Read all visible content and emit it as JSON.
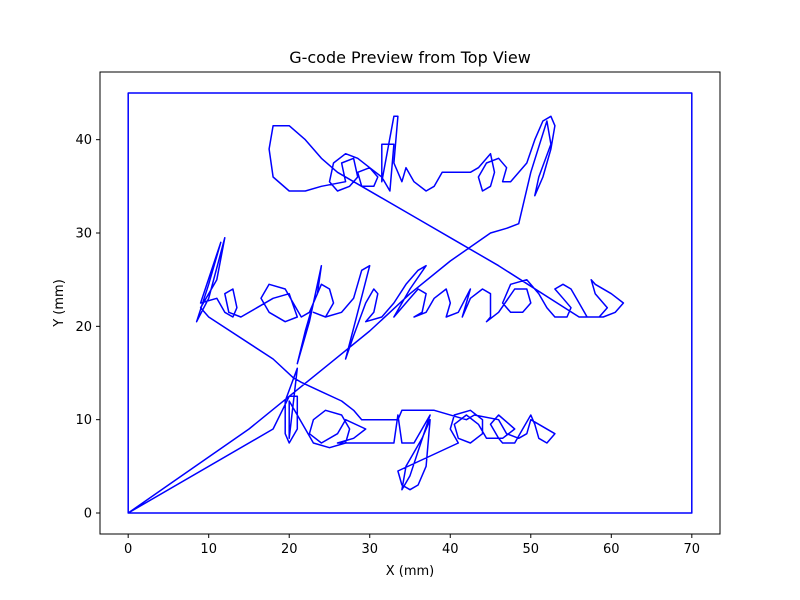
{
  "chart_data": {
    "type": "line",
    "title": "G-code Preview from Top View",
    "xlabel": "X (mm)",
    "ylabel": "Y (mm)",
    "xlim": [
      -3.5,
      73.5
    ],
    "ylim": [
      -2.25,
      47.25
    ],
    "xticks": [
      0,
      10,
      20,
      30,
      40,
      50,
      60,
      70
    ],
    "yticks": [
      0,
      10,
      20,
      30,
      40
    ],
    "grid": false,
    "line_color": "#0000ff",
    "series": [
      {
        "points": [
          [
            0,
            0
          ],
          [
            70,
            0
          ],
          [
            70,
            45
          ],
          [
            0,
            45
          ],
          [
            0,
            0
          ],
          [
            18,
            9
          ],
          [
            20,
            12.5
          ],
          [
            21,
            12.5
          ],
          [
            21,
            9
          ],
          [
            20,
            7.5
          ],
          [
            19.5,
            8.5
          ],
          [
            19.5,
            12
          ],
          [
            21,
            15.5
          ],
          [
            20,
            8
          ],
          [
            20,
            12
          ],
          [
            23,
            7.5
          ],
          [
            25,
            7
          ],
          [
            27,
            7.5
          ],
          [
            27.5,
            9
          ],
          [
            26.5,
            10.5
          ],
          [
            24.5,
            11
          ],
          [
            23,
            10
          ],
          [
            22.5,
            8.5
          ],
          [
            24,
            7.5
          ],
          [
            26,
            8.5
          ],
          [
            27,
            10
          ],
          [
            29.5,
            9
          ],
          [
            28,
            8
          ],
          [
            26,
            7.5
          ],
          [
            33,
            7.5
          ],
          [
            33.5,
            10.5
          ],
          [
            34,
            7.5
          ],
          [
            35.5,
            7.5
          ],
          [
            37.5,
            10.5
          ],
          [
            35,
            4
          ],
          [
            34,
            2.5
          ],
          [
            34.5,
            5
          ],
          [
            36.5,
            8
          ],
          [
            37.5,
            10
          ],
          [
            37,
            5
          ],
          [
            36,
            3
          ],
          [
            35,
            2.5
          ],
          [
            34,
            3
          ],
          [
            33.5,
            4.5
          ],
          [
            41,
            7.5
          ],
          [
            40,
            9
          ],
          [
            40.5,
            10.5
          ],
          [
            42.5,
            11
          ],
          [
            44,
            10
          ],
          [
            44,
            8.5
          ],
          [
            42.5,
            7.5
          ],
          [
            41,
            8
          ],
          [
            40.5,
            9.5
          ],
          [
            42,
            10.5
          ],
          [
            43.5,
            9.5
          ],
          [
            44.5,
            8
          ],
          [
            46.5,
            8
          ],
          [
            48,
            9
          ],
          [
            46,
            10.5
          ],
          [
            45,
            9.5
          ],
          [
            46,
            8
          ],
          [
            46.5,
            7.5
          ],
          [
            48,
            7.5
          ],
          [
            49,
            9
          ],
          [
            50,
            10.5
          ],
          [
            50.5,
            9.5
          ],
          [
            51,
            8
          ],
          [
            52,
            7.5
          ],
          [
            53,
            8.5
          ],
          [
            50,
            10
          ],
          [
            49.5,
            8.5
          ],
          [
            48.5,
            8
          ],
          [
            47,
            8.5
          ],
          [
            46,
            10
          ],
          [
            43,
            10.5
          ],
          [
            42,
            10
          ],
          [
            38,
            11
          ],
          [
            34,
            11
          ],
          [
            33.5,
            10
          ],
          [
            31,
            10
          ],
          [
            29,
            10
          ],
          [
            28,
            11
          ],
          [
            26.5,
            12
          ],
          [
            24,
            13
          ],
          [
            21.5,
            14
          ],
          [
            20.5,
            14.5
          ],
          [
            18,
            16.5
          ],
          [
            10,
            21
          ],
          [
            9,
            22
          ],
          [
            11,
            25
          ],
          [
            12,
            29.5
          ],
          [
            10,
            23
          ],
          [
            8.5,
            20.5
          ],
          [
            10,
            24.5
          ],
          [
            11.5,
            29
          ],
          [
            9,
            22.5
          ],
          [
            11,
            23
          ],
          [
            12,
            21.5
          ],
          [
            13,
            21
          ],
          [
            13.5,
            22
          ],
          [
            13,
            24
          ],
          [
            12,
            23.5
          ],
          [
            12.5,
            21.5
          ],
          [
            14,
            21
          ],
          [
            16,
            22
          ],
          [
            18,
            23
          ],
          [
            20,
            23.5
          ],
          [
            21,
            21
          ],
          [
            19.5,
            20.5
          ],
          [
            17.5,
            21.5
          ],
          [
            16.5,
            23
          ],
          [
            17.5,
            24.5
          ],
          [
            19.5,
            24
          ],
          [
            20.5,
            22.5
          ],
          [
            21.5,
            21
          ],
          [
            22.5,
            21.5
          ],
          [
            23.5,
            23.5
          ],
          [
            24,
            26.5
          ],
          [
            22.5,
            20.5
          ],
          [
            21,
            16
          ],
          [
            22,
            19.5
          ],
          [
            23,
            22.5
          ],
          [
            24,
            24.5
          ],
          [
            25,
            24
          ],
          [
            25.5,
            22.5
          ],
          [
            24.5,
            21
          ],
          [
            23,
            21.5
          ],
          [
            24.5,
            21
          ],
          [
            26.5,
            21.5
          ],
          [
            28,
            23
          ],
          [
            29,
            26
          ],
          [
            30,
            26.5
          ],
          [
            28.5,
            21.5
          ],
          [
            27,
            16.5
          ],
          [
            28,
            19
          ],
          [
            29.5,
            22.5
          ],
          [
            30.5,
            24
          ],
          [
            31,
            23.5
          ],
          [
            30.5,
            21.5
          ],
          [
            29.5,
            20.5
          ],
          [
            31.5,
            21
          ],
          [
            33,
            22.5
          ],
          [
            34.5,
            24.5
          ],
          [
            36,
            26
          ],
          [
            37,
            26.5
          ],
          [
            35,
            24
          ],
          [
            33,
            21
          ],
          [
            35,
            23
          ],
          [
            36,
            24
          ],
          [
            37,
            23.5
          ],
          [
            36.5,
            21.5
          ],
          [
            35.5,
            21
          ],
          [
            37,
            21.5
          ],
          [
            38,
            23
          ],
          [
            39.5,
            24
          ],
          [
            40,
            22.5
          ],
          [
            39.5,
            21
          ],
          [
            41,
            21.5
          ],
          [
            42.5,
            24
          ],
          [
            41.5,
            21
          ],
          [
            42.5,
            23
          ],
          [
            44,
            24
          ],
          [
            45,
            23.5
          ],
          [
            45,
            21
          ],
          [
            44.5,
            20.5
          ],
          [
            46,
            21.5
          ],
          [
            48,
            24
          ],
          [
            49.5,
            24
          ],
          [
            50,
            22.5
          ],
          [
            49,
            21.5
          ],
          [
            47.5,
            21.5
          ],
          [
            46.5,
            22.5
          ],
          [
            47.5,
            24.5
          ],
          [
            49.5,
            25
          ],
          [
            51,
            23.5
          ],
          [
            52,
            22
          ],
          [
            53,
            21
          ],
          [
            54.5,
            21
          ],
          [
            55,
            22
          ],
          [
            54,
            23
          ],
          [
            53,
            24
          ],
          [
            54,
            24.5
          ],
          [
            55,
            24
          ],
          [
            56,
            22.5
          ],
          [
            57,
            21
          ],
          [
            58.5,
            21
          ],
          [
            59.5,
            22
          ],
          [
            58,
            23.5
          ],
          [
            57.5,
            25
          ],
          [
            58,
            24.5
          ],
          [
            60,
            23.5
          ],
          [
            61.5,
            22.5
          ],
          [
            60.5,
            21.5
          ],
          [
            59,
            21
          ],
          [
            57.5,
            21
          ],
          [
            56,
            21
          ],
          [
            46,
            26.5
          ],
          [
            41,
            29
          ],
          [
            36,
            31.5
          ],
          [
            31,
            34
          ],
          [
            26,
            36.5
          ],
          [
            24,
            38
          ],
          [
            22,
            40
          ],
          [
            20,
            41.5
          ],
          [
            18,
            41.5
          ],
          [
            17.5,
            39
          ],
          [
            18,
            36
          ],
          [
            20,
            34.5
          ],
          [
            22,
            34.5
          ],
          [
            24,
            35
          ],
          [
            27,
            35.5
          ],
          [
            26.5,
            37.5
          ],
          [
            28,
            38
          ],
          [
            28.5,
            36
          ],
          [
            27.5,
            35
          ],
          [
            26,
            34.5
          ],
          [
            25,
            35.5
          ],
          [
            25.5,
            37.5
          ],
          [
            27,
            38.5
          ],
          [
            28.5,
            38
          ],
          [
            30,
            37
          ],
          [
            31,
            36
          ],
          [
            30.5,
            35
          ],
          [
            29,
            35
          ],
          [
            28.5,
            36.5
          ],
          [
            30,
            37
          ],
          [
            31.5,
            36
          ],
          [
            32.5,
            34.5
          ],
          [
            33,
            39.5
          ],
          [
            31.5,
            39.5
          ],
          [
            31.5,
            35.5
          ],
          [
            33,
            42.5
          ],
          [
            33.5,
            42.5
          ],
          [
            33,
            37.5
          ],
          [
            34,
            35.5
          ],
          [
            34.5,
            37
          ],
          [
            35.5,
            35.5
          ],
          [
            37,
            34.5
          ],
          [
            38,
            35
          ],
          [
            39,
            36.5
          ],
          [
            42.5,
            36.5
          ],
          [
            43.5,
            37
          ],
          [
            45,
            38.5
          ],
          [
            45.5,
            36.5
          ],
          [
            45,
            35
          ],
          [
            44,
            34.5
          ],
          [
            43.5,
            36
          ],
          [
            44.5,
            37.5
          ],
          [
            46,
            38
          ],
          [
            47,
            37
          ],
          [
            46.5,
            35.5
          ],
          [
            47.5,
            35.5
          ],
          [
            49.5,
            37.5
          ],
          [
            50.5,
            40
          ],
          [
            51.5,
            42
          ],
          [
            52.5,
            42.5
          ],
          [
            53,
            41.5
          ],
          [
            52.5,
            39
          ],
          [
            51.5,
            36
          ],
          [
            50.5,
            34
          ],
          [
            51,
            36
          ],
          [
            52.5,
            39.5
          ],
          [
            52,
            42
          ],
          [
            50,
            36.5
          ],
          [
            48.5,
            31
          ],
          [
            47,
            30.5
          ],
          [
            45,
            30
          ],
          [
            40,
            27
          ],
          [
            35,
            23.5
          ],
          [
            30,
            19.5
          ],
          [
            25,
            16
          ],
          [
            20,
            12.5
          ],
          [
            15,
            9
          ],
          [
            10,
            6
          ],
          [
            5,
            3
          ],
          [
            0,
            0
          ]
        ]
      }
    ]
  }
}
